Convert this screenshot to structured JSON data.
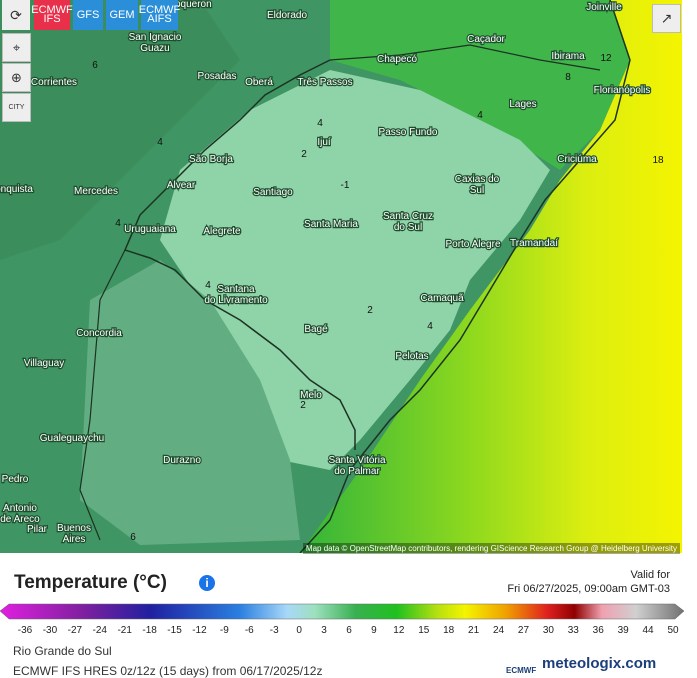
{
  "toolbar": {
    "models": [
      "ECMWF IFS",
      "GFS",
      "GEM",
      "ECMWF AIFS"
    ],
    "city_button": "CITY"
  },
  "map": {
    "cities": [
      [
        "Boqueron"
      ],
      [
        "Eldorado"
      ],
      [
        "Joinville"
      ],
      [
        "San Ignacio",
        "Guazu"
      ],
      [
        "Caçador"
      ],
      [
        "Chapecó"
      ],
      [
        "Ibirama"
      ],
      [
        "Corrientes"
      ],
      [
        "Posadas"
      ],
      [
        "Oberá"
      ],
      [
        "Três Passos"
      ],
      [
        "Lages"
      ],
      [
        "Florianópolis"
      ],
      [
        "Passo Fundo"
      ],
      [
        "Ijuí"
      ],
      [
        "São Borja"
      ],
      [
        "Criciúma"
      ],
      [
        "Caxias do",
        "Sul"
      ],
      [
        "onquista"
      ],
      [
        "Mercedes"
      ],
      [
        "Alvear"
      ],
      [
        "Santiago"
      ],
      [
        "Santa Maria"
      ],
      [
        "Santa Cruz",
        "do Sul"
      ],
      [
        "Uruguaiana"
      ],
      [
        "Alegrete"
      ],
      [
        "Porto Alegre"
      ],
      [
        "Tramandaí"
      ],
      [
        "Santana",
        "do Livramento"
      ],
      [
        "Camaquã"
      ],
      [
        "Concordia"
      ],
      [
        "Bagé"
      ],
      [
        "Pelotas"
      ],
      [
        "Villaguay"
      ],
      [
        "Melo"
      ],
      [
        "Gualeguaychu"
      ],
      [
        "Santa Vitória",
        "do Palmar"
      ],
      [
        "Durazno"
      ],
      [
        "Pedro"
      ],
      [
        "Antonio",
        "de Areco"
      ],
      [
        "Pilar"
      ],
      [
        "Buenos",
        "Aires"
      ]
    ],
    "contour_labels": [
      -1,
      2,
      2,
      2,
      4,
      4,
      4,
      4,
      4,
      4,
      6,
      6,
      8,
      12,
      18
    ],
    "attribution": "Map data © OpenStreetMap contributors, rendering GIScience Research Group @ Heidelberg University"
  },
  "legend": {
    "title": "Temperature (°C)",
    "valid_label": "Valid for",
    "valid_time": "Fri 06/27/2025, 09:00am GMT-03",
    "scale_ticks": [
      -36,
      -30,
      -27,
      -24,
      -21,
      -18,
      -15,
      -12,
      -9,
      -6,
      -3,
      0,
      3,
      6,
      9,
      12,
      15,
      18,
      21,
      24,
      27,
      30,
      33,
      36,
      39,
      44,
      50
    ]
  },
  "footer": {
    "region": "Rio Grande do Sul",
    "model_run": "ECMWF IFS HRES 0z/12z (15 days) from 06/17/2025/12z",
    "ecmwf_logo": "ECMWF",
    "brand": "meteologix.com"
  }
}
